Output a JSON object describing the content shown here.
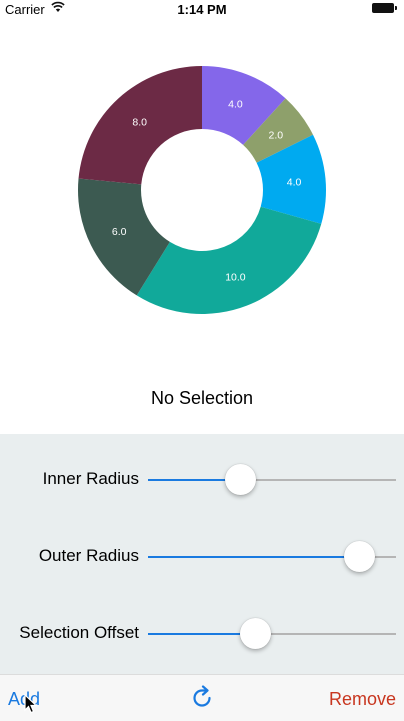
{
  "status_bar": {
    "carrier": "Carrier",
    "time": "1:14 PM"
  },
  "chart_data": {
    "type": "pie",
    "donut": true,
    "start_angle_deg": 0,
    "direction": "clockwise",
    "slices": [
      {
        "value": 4.0,
        "label": "4.0",
        "color": "#8467ea"
      },
      {
        "value": 2.0,
        "label": "2.0",
        "color": "#8ea06b"
      },
      {
        "value": 4.0,
        "label": "4.0",
        "color": "#00aaf0"
      },
      {
        "value": 10.0,
        "label": "10.0",
        "color": "#11a99a"
      },
      {
        "value": 6.0,
        "label": "6.0",
        "color": "#3c5a51"
      },
      {
        "value": 8.0,
        "label": "8.0",
        "color": "#6c2a45"
      }
    ]
  },
  "selection_label": "No Selection",
  "controls": {
    "inner_radius": {
      "label": "Inner Radius",
      "value": 0.37
    },
    "outer_radius": {
      "label": "Outer Radius",
      "value": 0.85
    },
    "selection_offset": {
      "label": "Selection Offset",
      "value": 0.43
    }
  },
  "toolbar": {
    "add_label": "Add",
    "remove_label": "Remove",
    "refresh_icon": "refresh-icon"
  },
  "colors": {
    "accent": "#1a7ae0",
    "destructive": "#c8361f",
    "controls_bg": "#e9eeef"
  }
}
